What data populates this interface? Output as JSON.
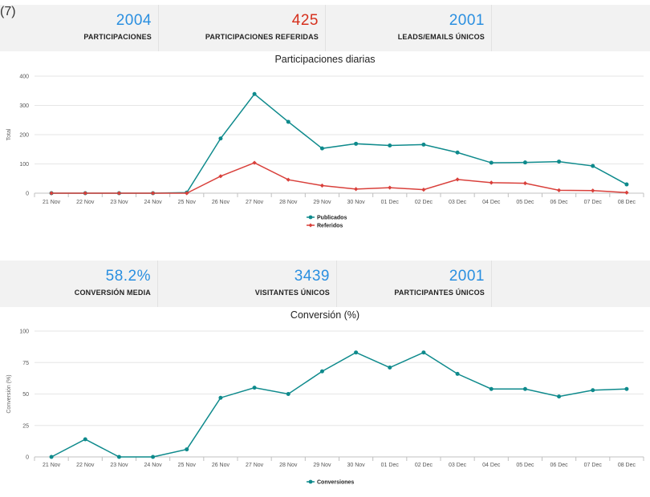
{
  "kpis_top": [
    {
      "value": "2004",
      "label": "PARTICIPACIONES",
      "color": "#2a8fe0",
      "note": "(7)"
    },
    {
      "value": "425",
      "label": "PARTICIPACIONES REFERIDAS",
      "color": "#d6301d"
    },
    {
      "value": "2001",
      "label": "LEADS/EMAILS ÚNICOS",
      "color": "#2a8fe0"
    }
  ],
  "kpis_mid": [
    {
      "value": "58.2%",
      "label": "CONVERSIÓN MEDIA",
      "color": "#2a8fe0"
    },
    {
      "value": "3439",
      "label": "VISITANTES ÚNICOS",
      "color": "#2a8fe0"
    },
    {
      "value": "2001",
      "label": "PARTICIPANTES ÚNICOS",
      "color": "#2a8fe0"
    }
  ],
  "chart_data": [
    {
      "type": "line",
      "title": "Participaciones diarias",
      "ylabel": "Total",
      "xlabel": "",
      "ylim": [
        0,
        400
      ],
      "yticks": [
        0,
        100,
        200,
        300,
        400
      ],
      "grid": true,
      "legend": "bottom",
      "categories": [
        "21 Nov",
        "22 Nov",
        "23 Nov",
        "24 Nov",
        "25 Nov",
        "26 Nov",
        "27 Nov",
        "28 Nov",
        "29 Nov",
        "30 Nov",
        "01 Dec",
        "02 Dec",
        "03 Dec",
        "04 Dec",
        "05 Dec",
        "06 Dec",
        "07 Dec",
        "08 Dec"
      ],
      "series": [
        {
          "name": "Publicados",
          "color": "#0e8a8c",
          "marker": "circle",
          "values": [
            0,
            0,
            0,
            0,
            2,
            187,
            339,
            244,
            153,
            169,
            163,
            166,
            139,
            104,
            105,
            108,
            93,
            30
          ]
        },
        {
          "name": "Referidos",
          "color": "#d9403b",
          "marker": "diamond",
          "values": [
            0,
            0,
            0,
            0,
            0,
            58,
            104,
            46,
            26,
            14,
            19,
            12,
            47,
            36,
            34,
            10,
            9,
            2
          ]
        }
      ]
    },
    {
      "type": "line",
      "title": "Conversión (%)",
      "ylabel": "Conversión (%)",
      "xlabel": "",
      "ylim": [
        0,
        100
      ],
      "yticks": [
        0,
        25,
        50,
        75,
        100
      ],
      "grid": true,
      "legend": "bottom",
      "categories": [
        "21 Nov",
        "22 Nov",
        "23 Nov",
        "24 Nov",
        "25 Nov",
        "26 Nov",
        "27 Nov",
        "28 Nov",
        "29 Nov",
        "30 Nov",
        "01 Dec",
        "02 Dec",
        "03 Dec",
        "04 Dec",
        "05 Dec",
        "06 Dec",
        "07 Dec",
        "08 Dec"
      ],
      "series": [
        {
          "name": "Conversiones",
          "color": "#0e8a8c",
          "marker": "circle",
          "values": [
            0,
            14,
            0,
            0,
            6,
            47,
            55,
            50,
            68,
            83,
            71,
            83,
            66,
            54,
            54,
            48,
            53,
            54
          ]
        }
      ]
    }
  ]
}
